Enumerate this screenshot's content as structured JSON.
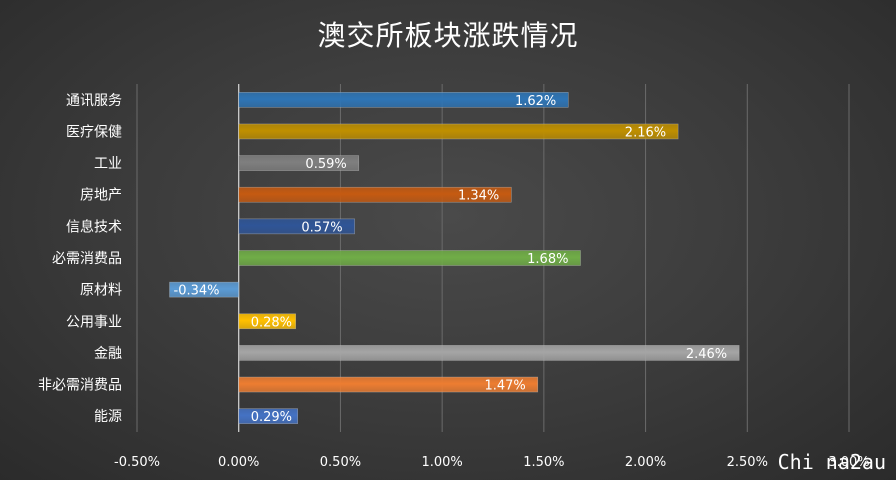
{
  "watermark": "Chi na2au",
  "chart_data": {
    "type": "bar",
    "orientation": "horizontal",
    "title": "澳交所板块涨跌情况",
    "xlabel": "",
    "ylabel": "",
    "xlim": [
      -0.5,
      3.0
    ],
    "xticks": [
      -0.5,
      0.0,
      0.5,
      1.0,
      1.5,
      2.0,
      2.5,
      3.0
    ],
    "xtick_labels": [
      "-0.50%",
      "0.00%",
      "0.50%",
      "1.00%",
      "1.50%",
      "2.00%",
      "2.50%",
      "3.00%"
    ],
    "grid": true,
    "legend": false,
    "categories": [
      "通讯服务",
      "医疗保健",
      "工业",
      "房地产",
      "信息技术",
      "必需消费品",
      "原材料",
      "公用事业",
      "金融",
      "非必需消费品",
      "能源"
    ],
    "values": [
      1.62,
      2.16,
      0.59,
      1.34,
      0.57,
      1.68,
      -0.34,
      0.28,
      2.46,
      1.47,
      0.29
    ],
    "data_labels": [
      "1.62%",
      "2.16%",
      "0.59%",
      "1.34%",
      "0.57%",
      "1.68%",
      "-0.34%",
      "0.28%",
      "2.46%",
      "1.47%",
      "0.29%"
    ],
    "colors": [
      "#2e75b6",
      "#bf8f00",
      "#7f7f7f",
      "#c55a11",
      "#2f5597",
      "#70ad47",
      "#5b9bd5",
      "#ffc000",
      "#a5a5a5",
      "#ed7d31",
      "#4472c4"
    ]
  }
}
